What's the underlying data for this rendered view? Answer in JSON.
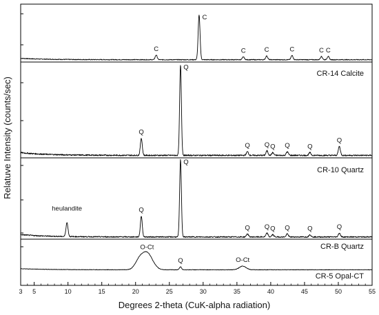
{
  "chart_data": {
    "type": "line",
    "title": "",
    "xlabel": "Degrees 2-theta (CuK-alpha radiation)",
    "ylabel": "Relatuve Intensity (counts/sec)",
    "xlim": [
      3,
      55
    ],
    "x_ticks": [
      3,
      5,
      10,
      15,
      20,
      25,
      30,
      35,
      40,
      45,
      50,
      55
    ],
    "grid": false,
    "legend": "none",
    "series": [
      {
        "label": "CR-14  Calcite",
        "color": "#000000",
        "baseline": 0.02,
        "noise": 0.008,
        "peaks": [
          {
            "x": 23.05,
            "h": 0.1,
            "w": 0.15
          },
          {
            "x": 29.4,
            "h": 0.95,
            "w": 0.14
          },
          {
            "x": 35.95,
            "h": 0.06,
            "w": 0.15
          },
          {
            "x": 39.4,
            "h": 0.08,
            "w": 0.15
          },
          {
            "x": 43.15,
            "h": 0.09,
            "w": 0.15
          },
          {
            "x": 47.5,
            "h": 0.07,
            "w": 0.15
          },
          {
            "x": 48.5,
            "h": 0.07,
            "w": 0.15
          }
        ],
        "annotations": [
          {
            "x": 29.4,
            "text": "C"
          },
          {
            "x": 23.05,
            "text": "C"
          },
          {
            "x": 35.95,
            "text": "C"
          },
          {
            "x": 39.4,
            "text": "C"
          },
          {
            "x": 43.15,
            "text": "C"
          },
          {
            "x": 47.5,
            "text": "C"
          },
          {
            "x": 48.5,
            "text": "C"
          }
        ]
      },
      {
        "label": "CR-10  Quartz",
        "color": "#000000",
        "baseline": 0.02,
        "noise": 0.007,
        "peaks": [
          {
            "x": 20.85,
            "h": 0.19,
            "w": 0.14
          },
          {
            "x": 26.65,
            "h": 1.0,
            "w": 0.13
          },
          {
            "x": 36.55,
            "h": 0.04,
            "w": 0.15
          },
          {
            "x": 39.45,
            "h": 0.05,
            "w": 0.15
          },
          {
            "x": 40.3,
            "h": 0.03,
            "w": 0.15
          },
          {
            "x": 42.45,
            "h": 0.04,
            "w": 0.15
          },
          {
            "x": 45.8,
            "h": 0.03,
            "w": 0.15
          },
          {
            "x": 50.15,
            "h": 0.1,
            "w": 0.15
          }
        ],
        "annotations": [
          {
            "x": 26.65,
            "text": "Q"
          },
          {
            "x": 20.85,
            "text": "Q"
          },
          {
            "x": 36.55,
            "text": "Q"
          },
          {
            "x": 39.45,
            "text": "Q"
          },
          {
            "x": 40.3,
            "text": "Q"
          },
          {
            "x": 42.45,
            "text": "Q"
          },
          {
            "x": 45.8,
            "text": "Q"
          },
          {
            "x": 50.15,
            "text": "Q"
          }
        ]
      },
      {
        "label": "CR-B  Quartz",
        "color": "#000000",
        "baseline": 0.02,
        "noise": 0.007,
        "peaks": [
          {
            "x": 9.85,
            "h": 0.18,
            "w": 0.15
          },
          {
            "x": 20.85,
            "h": 0.27,
            "w": 0.14
          },
          {
            "x": 26.65,
            "h": 1.0,
            "w": 0.13
          },
          {
            "x": 36.55,
            "h": 0.04,
            "w": 0.15
          },
          {
            "x": 39.45,
            "h": 0.05,
            "w": 0.15
          },
          {
            "x": 40.3,
            "h": 0.03,
            "w": 0.15
          },
          {
            "x": 42.45,
            "h": 0.04,
            "w": 0.15
          },
          {
            "x": 45.8,
            "h": 0.03,
            "w": 0.15
          },
          {
            "x": 50.15,
            "h": 0.05,
            "w": 0.15
          }
        ],
        "annotations": [
          {
            "x": 26.65,
            "text": "Q"
          },
          {
            "x": 9.85,
            "text": "heulandite"
          },
          {
            "x": 20.85,
            "text": "Q"
          },
          {
            "x": 36.55,
            "text": "Q"
          },
          {
            "x": 39.45,
            "text": "Q"
          },
          {
            "x": 40.3,
            "text": "Q"
          },
          {
            "x": 42.45,
            "text": "Q"
          },
          {
            "x": 45.8,
            "text": "Q"
          },
          {
            "x": 50.15,
            "text": "Q"
          }
        ]
      },
      {
        "label": "CR-5  Opal-CT",
        "color": "#000000",
        "baseline": 0.03,
        "noise": 0.006,
        "peaks": [
          {
            "x": 21.7,
            "h": 0.45,
            "w": 0.8
          },
          {
            "x": 20.5,
            "h": 0.2,
            "w": 0.6
          },
          {
            "x": 26.65,
            "h": 0.08,
            "w": 0.15
          },
          {
            "x": 35.85,
            "h": 0.1,
            "w": 0.5
          }
        ],
        "annotations": [
          {
            "x": 21.7,
            "text": "O-Ct"
          },
          {
            "x": 26.65,
            "text": "Q"
          },
          {
            "x": 35.85,
            "text": "O-Ct"
          }
        ]
      }
    ]
  }
}
